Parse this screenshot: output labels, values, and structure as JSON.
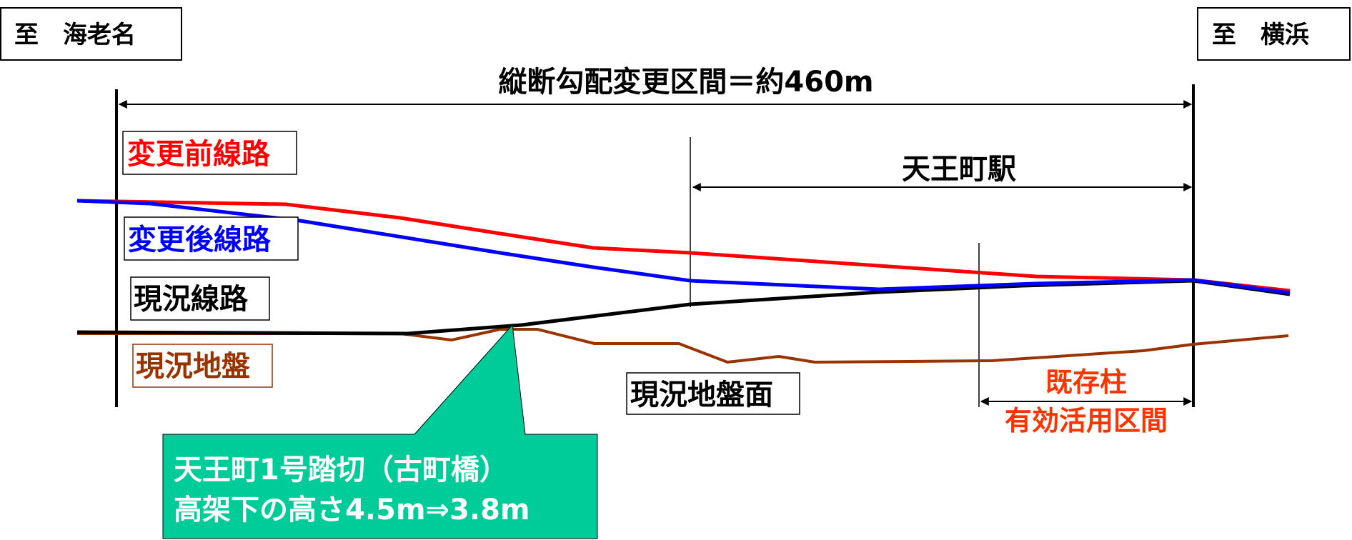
{
  "direction_left": "至　海老名",
  "direction_right": "至　横浜",
  "span_total": "縦断勾配変更区間＝約460m",
  "span_station": "天王町駅",
  "span_columns": {
    "line1": "既存柱",
    "line2": "有効活用区間"
  },
  "legend": {
    "before": "変更前線路",
    "after": "変更後線路",
    "current_track": "現況線路",
    "current_ground": "現況地盤"
  },
  "ground_surface_label": "現況地盤面",
  "callout": {
    "line1": "天王町1号踏切（古町橋）",
    "line2": "高架下の高さ4.5m⇒3.8m"
  },
  "colors": {
    "before": "#ff0000",
    "after": "#0000ff",
    "current_track": "#000000",
    "current_ground": "#993300",
    "callout_bg": "#00cc99",
    "callout_text": "#ffffff",
    "columns_text": "#ff3300"
  }
}
